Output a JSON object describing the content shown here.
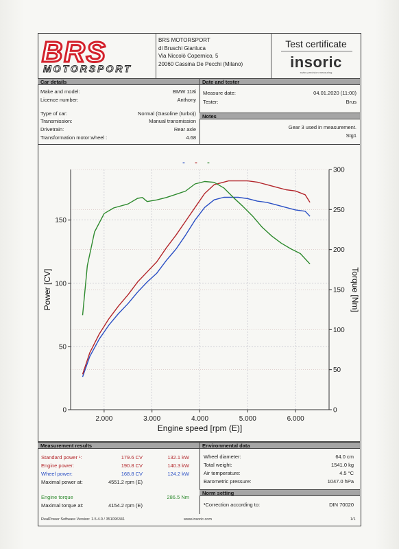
{
  "company": {
    "logo_main": "BRS",
    "logo_sub": "MOTORSPORT",
    "name": "BRS MOTORSPORT",
    "line2": "di Bruschi Gianluca",
    "line3": "Via Niccolò Copernico, 5",
    "line4": "20060 Cassina De Pecchi (Milano)"
  },
  "certificate": {
    "title": "Test certificate",
    "brand": "insoric",
    "brand_sub": "swiss precision measuring"
  },
  "car_details": {
    "header": "Car details",
    "rows": [
      {
        "label": "Make and model:",
        "value": "BMW 118i"
      },
      {
        "label": "Licence number:",
        "value": "Anthony"
      },
      {
        "label": "Type of car:",
        "value": "Normal (Gasoline (turbo))"
      },
      {
        "label": "Transmission:",
        "value": "Manual transmission"
      },
      {
        "label": "Drivetrain:",
        "value": "Rear axle"
      },
      {
        "label": "Transformation motor:wheel :",
        "value": "4.68"
      }
    ]
  },
  "date_tester": {
    "header": "Date and tester",
    "rows": [
      {
        "label": "Measure date:",
        "value": "04.01.2020 (11:00)"
      },
      {
        "label": "Tester:",
        "value": "Brus"
      }
    ]
  },
  "notes": {
    "header": "Notes",
    "line1": "Gear 3 used in measurement.",
    "line2": "Stg1"
  },
  "chart_data": {
    "type": "line",
    "xlabel": "Engine speed [rpm (E)]",
    "ylabel_left": "Power [CV]",
    "ylabel_right": "Torque [Nm]",
    "xlim": [
      1300,
      6700
    ],
    "ylim_left": [
      0,
      190
    ],
    "ylim_right": [
      0,
      300
    ],
    "x_ticks": [
      {
        "v": 2000,
        "label": "2.000"
      },
      {
        "v": 3000,
        "label": "3.000"
      },
      {
        "v": 4000,
        "label": "4.000"
      },
      {
        "v": 5000,
        "label": "5.000"
      },
      {
        "v": 6000,
        "label": "6.000"
      }
    ],
    "y_ticks_left": [
      {
        "v": 0,
        "label": "0"
      },
      {
        "v": 50,
        "label": "50"
      },
      {
        "v": 100,
        "label": "100"
      },
      {
        "v": 150,
        "label": "150"
      }
    ],
    "y_ticks_right": [
      {
        "v": 0,
        "label": "0"
      },
      {
        "v": 50,
        "label": "50"
      },
      {
        "v": 100,
        "label": "100"
      },
      {
        "v": 150,
        "label": "150"
      },
      {
        "v": 200,
        "label": "200"
      },
      {
        "v": 250,
        "label": "250"
      },
      {
        "v": 300,
        "label": "300"
      }
    ],
    "grid": true,
    "series": [
      {
        "key": "wheel_power",
        "axis": "left",
        "color": "#2a4fc4",
        "x": [
          1550,
          1700,
          1900,
          2100,
          2300,
          2500,
          2700,
          2900,
          3100,
          3300,
          3500,
          3700,
          3900,
          4100,
          4300,
          4500,
          4600,
          4800,
          5000,
          5200,
          5400,
          5600,
          5800,
          6000,
          6200,
          6300
        ],
        "y": [
          26,
          42,
          56,
          67,
          76,
          84,
          93,
          101,
          108,
          118,
          127,
          138,
          150,
          160,
          166,
          168,
          168,
          168,
          167,
          165,
          164,
          162,
          160,
          158,
          157,
          153
        ]
      },
      {
        "key": "engine_power",
        "axis": "left",
        "color": "#b3262b",
        "x": [
          1550,
          1700,
          1900,
          2100,
          2300,
          2500,
          2700,
          2900,
          3100,
          3300,
          3500,
          3700,
          3900,
          4100,
          4300,
          4500,
          4600,
          4800,
          5000,
          5200,
          5400,
          5600,
          5800,
          6000,
          6200,
          6300
        ],
        "y": [
          28,
          45,
          60,
          72,
          82,
          91,
          101,
          109,
          117,
          128,
          138,
          149,
          160,
          171,
          178,
          180,
          181,
          181,
          181,
          180,
          178,
          176,
          174,
          173,
          170,
          164
        ]
      },
      {
        "key": "engine_torque",
        "axis": "right",
        "color": "#2e8a2e",
        "x": [
          1550,
          1650,
          1800,
          2000,
          2200,
          2500,
          2700,
          2800,
          2900,
          3100,
          3300,
          3500,
          3700,
          3900,
          4100,
          4300,
          4500,
          4700,
          4900,
          5100,
          5300,
          5500,
          5700,
          5900,
          6100,
          6300
        ],
        "y": [
          118,
          180,
          222,
          245,
          252,
          257,
          264,
          265,
          260,
          262,
          265,
          269,
          273,
          282,
          285,
          284,
          277,
          265,
          254,
          242,
          228,
          217,
          208,
          201,
          195,
          182
        ]
      }
    ]
  },
  "legend": {
    "marker": "-"
  },
  "measurement": {
    "header": "Measurement results",
    "rows": [
      {
        "label": "Standard power ¹:",
        "v1": "179.6 CV",
        "v2": "132.1 kW",
        "color": "#b3262b"
      },
      {
        "label": "Engine power:",
        "v1": "190.8 CV",
        "v2": "140.3 kW",
        "color": "#b3262b"
      },
      {
        "label": "Wheel power:",
        "v1": "168.8 CV",
        "v2": "124.2 kW",
        "color": "#2a4fc4"
      },
      {
        "label": "Maximal power at:",
        "v1": "4551.2 rpm (E)",
        "v2": "",
        "color": "#222"
      },
      {
        "label": "Engine torque",
        "v1": "",
        "v2": "286.5 Nm",
        "color": "#2e8a2e"
      },
      {
        "label": "Maximal torque at:",
        "v1": "4154.2 rpm (E)",
        "v2": "",
        "color": "#222"
      }
    ]
  },
  "environment": {
    "header": "Environmental data",
    "rows": [
      {
        "label": "Wheel diameter:",
        "value": "64.0 cm"
      },
      {
        "label": "Total weight:",
        "value": "1541.0 kg"
      },
      {
        "label": "Air temperature:",
        "value": "4.5 °C"
      },
      {
        "label": "Barometric pressure:",
        "value": "1047.0 hPa"
      }
    ]
  },
  "norm": {
    "header": "Norm setting",
    "label": "¹Correction according to:",
    "value": "DIN 70020"
  },
  "footer": {
    "left": "RealPower Software Version: 1.5.4.0 / 351096341",
    "center": "www.insoric.com",
    "right": "1/1"
  }
}
